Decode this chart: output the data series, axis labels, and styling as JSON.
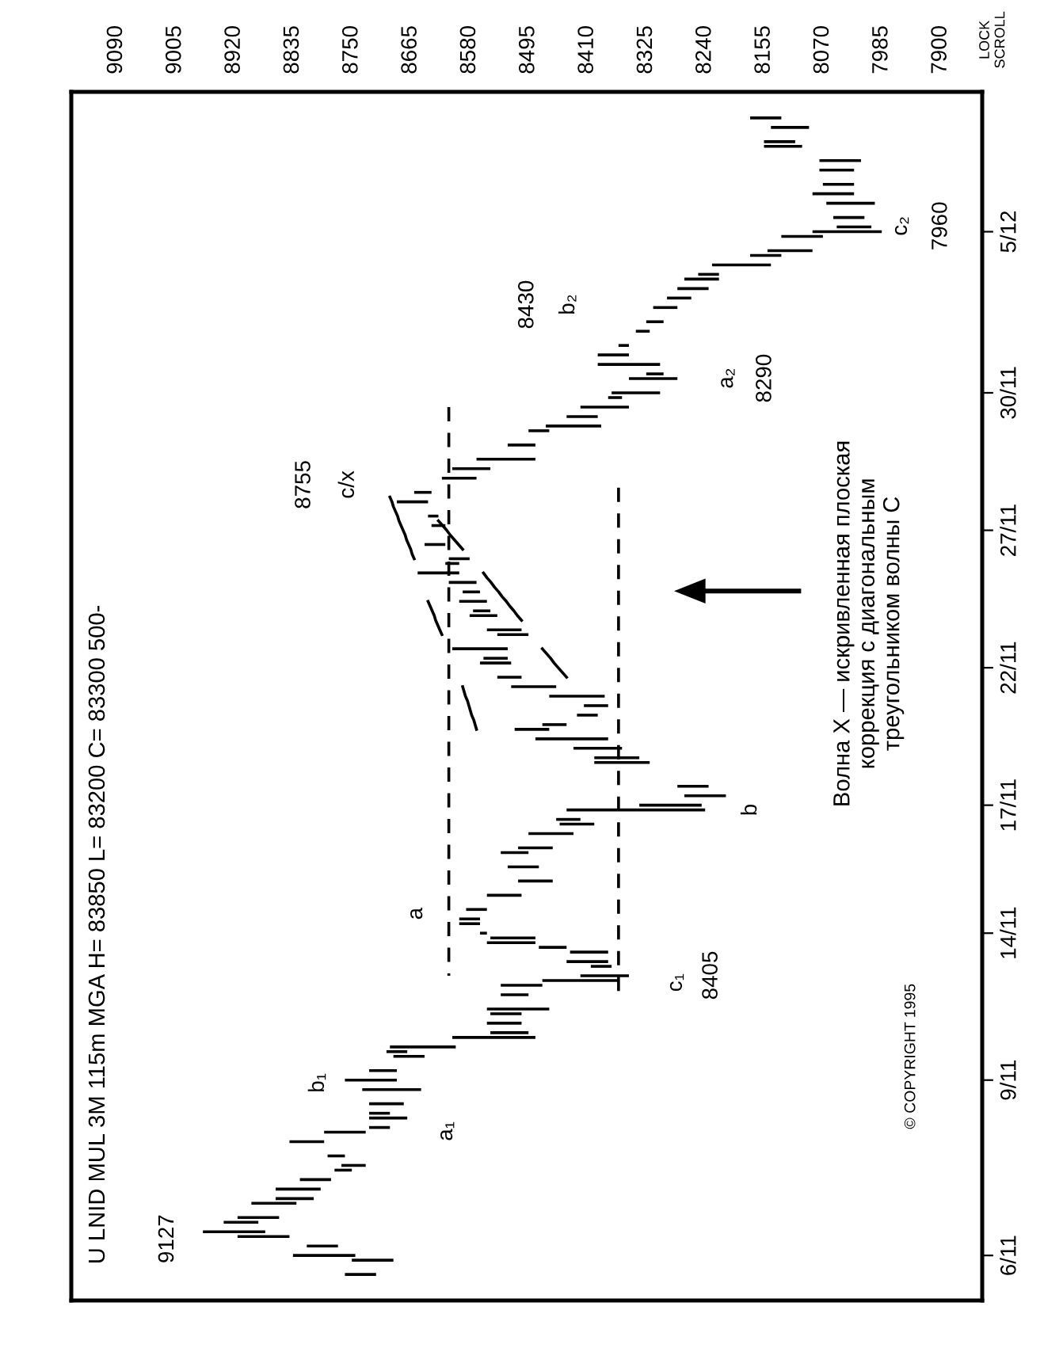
{
  "chart_data": {
    "type": "bar",
    "orientation": "horizontal",
    "title": "U LNID MUL 3M 115m MGA H= 83850 L= 83200 C= 83300 500-",
    "xlim": [
      9155,
      7840
    ],
    "xticks": [
      9090,
      9005,
      8920,
      8835,
      8750,
      8665,
      8580,
      8495,
      8410,
      8325,
      8240,
      8155,
      8070,
      7985,
      7900
    ],
    "grid": false,
    "categories": [
      null,
      null,
      null,
      null,
      null,
      null,
      null,
      null,
      null,
      null,
      null,
      null,
      null,
      null,
      null,
      null,
      null,
      null,
      null,
      null,
      null,
      null,
      null,
      null,
      null,
      null,
      null,
      null,
      null,
      "5/12",
      null,
      null,
      null,
      null,
      null,
      null,
      null,
      null,
      null,
      null,
      null,
      null,
      null,
      null,
      null,
      null,
      null,
      null,
      null,
      null,
      null,
      null,
      null,
      null,
      null,
      null,
      null,
      null,
      null,
      null,
      null,
      null,
      null,
      "30/11",
      null,
      null,
      null,
      null,
      null,
      null,
      null,
      null,
      null,
      null,
      null,
      null,
      null,
      null,
      null,
      null,
      null,
      null,
      null,
      null,
      null,
      null,
      null,
      null,
      null,
      null,
      null,
      null,
      "27/11",
      null,
      null,
      null,
      null,
      null,
      null,
      null,
      null,
      null,
      null,
      null,
      null,
      null,
      null,
      null,
      null,
      null,
      null,
      null,
      null,
      null,
      null,
      null,
      null,
      null,
      null,
      null,
      null,
      "22/11",
      null,
      null,
      null,
      null,
      null,
      null,
      null,
      null,
      null,
      null,
      null,
      null,
      null,
      null,
      null,
      null,
      null,
      null,
      null,
      null,
      null,
      null,
      null,
      null,
      null,
      null,
      null,
      null,
      "17/11",
      null,
      null,
      null,
      null,
      null,
      null,
      null,
      null,
      null,
      null,
      null,
      null,
      null,
      null,
      null,
      null,
      null,
      null,
      null,
      null,
      null,
      null,
      null,
      null,
      null,
      null,
      "14/11",
      null,
      null,
      null,
      null,
      null,
      null,
      null,
      null,
      null,
      null,
      null,
      null,
      null,
      null,
      null,
      null,
      null,
      null,
      null,
      null,
      null,
      null,
      null,
      null,
      null,
      null,
      null,
      null,
      null,
      null,
      "9/11",
      null,
      null,
      null,
      null,
      null,
      null,
      null,
      null,
      null,
      null,
      null,
      null,
      null,
      null,
      null,
      null,
      null,
      null,
      null,
      null,
      null,
      null,
      null,
      null,
      null,
      null,
      null,
      null,
      null,
      null,
      null,
      null,
      null,
      null,
      null,
      null,
      "6/11",
      null,
      null,
      null,
      null,
      null,
      null,
      null,
      null,
      null
    ],
    "series": [
      {
        "color": "#000000",
        "base": [
          null,
          null,
          null,
          null,
          null,
          8130,
          null,
          8090,
          null,
          null,
          8110,
          8100,
          null,
          null,
          8015,
          null,
          8025,
          null,
          null,
          8025,
          null,
          8025,
          null,
          7995,
          null,
          null,
          8010,
          null,
          8000,
          7985,
          8070,
          null,
          null,
          8085,
          8130,
          null,
          8145,
          null,
          8220,
          8220,
          null,
          8235,
          null,
          8260,
          null,
          8280,
          null,
          null,
          8300,
          null,
          8320,
          null,
          null,
          8350,
          null,
          8350,
          null,
          8305,
          null,
          8300,
          8280,
          null,
          null,
          8305,
          8360,
          null,
          8350,
          null,
          8395,
          null,
          8390,
          8465,
          null,
          null,
          8485,
          null,
          null,
          8485,
          null,
          8550,
          null,
          8570,
          null,
          null,
          8635,
          null,
          8640,
          null,
          null,
          8625,
          null,
          8615,
          null,
          null,
          null,
          8615,
          null,
          null,
          8580,
          8595,
          null,
          8595,
          null,
          8570,
          null,
          8565,
          null,
          8555,
          null,
          8550,
          8540,
          null,
          null,
          8505,
          8495,
          null,
          null,
          8525,
          null,
          8525,
          8520,
          null,
          null,
          8505,
          null,
          8455,
          null,
          8385,
          null,
          8380,
          null,
          8395,
          null,
          8440,
          8465,
          null,
          8380,
          null,
          8360,
          null,
          8335,
          8320,
          null,
          null,
          null,
          null,
          8235,
          null,
          8210,
          null,
          8245,
          8240,
          null,
          8420,
          8400,
          null,
          8430,
          null,
          null,
          8460,
          8495,
          null,
          null,
          8480,
          null,
          null,
          8460,
          null,
          null,
          8505,
          null,
          null,
          8555,
          null,
          8565,
          8565,
          null,
          8555,
          8485,
          8485,
          8440,
          8380,
          null,
          8380,
          8375,
          null,
          8350,
          8365,
          8475,
          null,
          8495,
          null,
          null,
          8465,
          8505,
          null,
          8505,
          null,
          8495,
          8485,
          null,
          8600,
          8670,
          8645,
          null,
          null,
          8685,
          null,
          8685,
          null,
          8650,
          null,
          null,
          8675,
          null,
          8695,
          8670,
          null,
          8695,
          8730,
          null,
          8790,
          null,
          null,
          8760,
          null,
          8730,
          8750,
          null,
          8780,
          null,
          8795,
          null,
          8805,
          8830,
          null,
          null,
          8855,
          8885,
          null,
          8875,
          8840,
          null,
          8770,
          null,
          8745,
          8690,
          null,
          null,
          8715,
          null,
          null,
          null,
          null,
          null
        ],
        "values": [
          null,
          null,
          null,
          null,
          null,
          45,
          null,
          55,
          null,
          null,
          45,
          55,
          null,
          null,
          60,
          null,
          50,
          null,
          null,
          45,
          null,
          60,
          null,
          70,
          null,
          null,
          45,
          null,
          50,
          100,
          60,
          null,
          null,
          65,
          45,
          null,
          85,
          null,
          30,
          50,
          null,
          45,
          null,
          35,
          null,
          35,
          null,
          null,
          25,
          null,
          20,
          null,
          null,
          15,
          null,
          45,
          null,
          90,
          null,
          25,
          70,
          null,
          null,
          70,
          20,
          null,
          70,
          null,
          45,
          null,
          80,
          30,
          null,
          null,
          40,
          null,
          null,
          85,
          null,
          55,
          null,
          50,
          null,
          null,
          25,
          null,
          45,
          null,
          null,
          15,
          null,
          20,
          null,
          null,
          null,
          30,
          null,
          null,
          30,
          20,
          null,
          60,
          null,
          40,
          null,
          25,
          null,
          40,
          null,
          25,
          40,
          null,
          null,
          50,
          45,
          null,
          null,
          80,
          null,
          35,
          45,
          null,
          null,
          35,
          null,
          65,
          null,
          80,
          null,
          35,
          null,
          30,
          null,
          35,
          50,
          null,
          105,
          null,
          70,
          null,
          65,
          80,
          null,
          null,
          null,
          null,
          45,
          null,
          60,
          null,
          90,
          200,
          null,
          35,
          50,
          null,
          65,
          null,
          null,
          50,
          40,
          null,
          null,
          45,
          null,
          null,
          50,
          null,
          null,
          50,
          null,
          null,
          30,
          null,
          30,
          30,
          null,
          10,
          65,
          70,
          40,
          55,
          null,
          60,
          30,
          null,
          70,
          110,
          60,
          null,
          40,
          null,
          null,
          90,
          45,
          null,
          50,
          null,
          55,
          120,
          null,
          95,
          30,
          45,
          null,
          null,
          40,
          null,
          75,
          null,
          85,
          null,
          null,
          50,
          null,
          30,
          55,
          null,
          30,
          60,
          null,
          50,
          null,
          null,
          25,
          null,
          35,
          25,
          null,
          45,
          null,
          65,
          null,
          55,
          65,
          null,
          null,
          60,
          50,
          null,
          90,
          75,
          null,
          45,
          null,
          90,
          60,
          null,
          null,
          45,
          null,
          null,
          null,
          null,
          null
        ]
      },
      {
        "type": "line",
        "color": "#000000",
        "line_style": "dashed",
        "values": [
          null,
          null,
          null,
          null,
          null,
          null,
          null,
          null,
          null,
          null,
          null,
          null,
          null,
          null,
          null,
          null,
          null,
          null,
          null,
          null,
          null,
          null,
          null,
          null,
          null,
          null,
          null,
          null,
          null,
          null,
          null,
          null,
          null,
          null,
          null,
          null,
          null,
          null,
          null,
          null,
          null,
          null,
          null,
          null,
          null,
          null,
          null,
          null,
          null,
          null,
          null,
          null,
          null,
          null,
          null,
          null,
          null,
          null,
          null,
          null,
          null,
          null,
          null,
          null,
          null,
          null,
          8610,
          8610,
          8610,
          8610,
          8610,
          8610,
          8610,
          8610,
          8610,
          8610,
          8610,
          8610,
          8610,
          8610,
          8610,
          8610,
          8610,
          8610,
          8610,
          8610,
          8610,
          8610,
          8610,
          8610,
          8610,
          8610,
          8610,
          8610,
          8610,
          8610,
          8610,
          8610,
          8610,
          8610,
          8610,
          8610,
          8610,
          8610,
          8610,
          8610,
          8610,
          8610,
          8610,
          8610,
          8610,
          8610,
          8610,
          8610,
          8610,
          8610,
          8610,
          8610,
          8610,
          8610,
          8610,
          8610,
          8610,
          8610,
          8610,
          8610,
          8610,
          8610,
          8610,
          8610,
          8610,
          8610,
          8610,
          8610,
          8610,
          8610,
          8610,
          8610,
          8610,
          8610,
          8610,
          8610,
          8610,
          8610,
          8610,
          8610,
          8610,
          8610,
          8610,
          8610,
          8610,
          8610,
          8610,
          8610,
          8610,
          8610,
          8610,
          8610,
          8610,
          8610,
          8610,
          8610,
          8610,
          8610,
          8610,
          8610,
          8610,
          8610,
          8610,
          8610,
          8610,
          8610,
          8610,
          8610,
          8610,
          8610,
          8610,
          8610,
          8610,
          8610,
          8610,
          8610,
          8610,
          8610,
          8610,
          8610,
          8610,
          null,
          null,
          null,
          null,
          null,
          null,
          null,
          null,
          null,
          null,
          null,
          null,
          null,
          null,
          null,
          null,
          null,
          null,
          null,
          null,
          null,
          null,
          null,
          null,
          null,
          null,
          null,
          null,
          null,
          null,
          null,
          null,
          null,
          null,
          null,
          null,
          null,
          null,
          null,
          null,
          null,
          null,
          null,
          null,
          null,
          null,
          null,
          null,
          null,
          null,
          null,
          null,
          null,
          null,
          null,
          null,
          null,
          null,
          null,
          null,
          null,
          null,
          null,
          null,
          null,
          null,
          null,
          null
        ]
      },
      {
        "type": "line",
        "color": "#000000",
        "line_style": "dashed",
        "values": [
          null,
          null,
          null,
          null,
          null,
          null,
          null,
          null,
          null,
          null,
          null,
          null,
          null,
          null,
          null,
          null,
          null,
          null,
          null,
          null,
          null,
          null,
          null,
          null,
          null,
          null,
          null,
          null,
          null,
          null,
          null,
          null,
          null,
          null,
          null,
          null,
          null,
          null,
          null,
          null,
          null,
          null,
          null,
          null,
          null,
          null,
          null,
          null,
          null,
          null,
          null,
          null,
          null,
          null,
          null,
          null,
          null,
          null,
          null,
          null,
          null,
          null,
          null,
          null,
          null,
          null,
          null,
          null,
          null,
          null,
          null,
          null,
          null,
          null,
          null,
          null,
          null,
          null,
          null,
          null,
          null,
          null,
          null,
          8365,
          8365,
          8365,
          8365,
          8365,
          8365,
          8365,
          8365,
          8365,
          8365,
          8365,
          8365,
          8365,
          8365,
          8365,
          8365,
          8365,
          8365,
          8365,
          8365,
          8365,
          8365,
          8365,
          8365,
          8365,
          8365,
          8365,
          8365,
          8365,
          8365,
          8365,
          8365,
          8365,
          8365,
          8365,
          8365,
          8365,
          8365,
          8365,
          8365,
          8365,
          8365,
          8365,
          8365,
          8365,
          8365,
          8365,
          8365,
          8365,
          8365,
          8365,
          8365,
          8365,
          8365,
          8365,
          8365,
          8365,
          8365,
          8365,
          8365,
          8365,
          8365,
          8365,
          8365,
          8365,
          8365,
          8365,
          8365,
          8365,
          8365,
          8365,
          8365,
          8365,
          8365,
          8365,
          8365,
          8365,
          8365,
          8365,
          8365,
          8365,
          8365,
          8365,
          8365,
          8365,
          8365,
          8365,
          8365,
          8365,
          8365,
          8365,
          8365,
          8365,
          8365,
          8365,
          8365,
          8365,
          8365,
          8365,
          8365,
          8365,
          8365,
          8365,
          8365,
          8365,
          8365,
          8365,
          8365,
          null,
          null,
          null,
          null,
          null,
          null,
          null,
          null,
          null,
          null,
          null,
          null,
          null,
          null,
          null,
          null,
          null,
          null,
          null,
          null,
          null,
          null,
          null,
          null,
          null,
          null,
          null,
          null,
          null,
          null,
          null,
          null,
          null,
          null,
          null,
          null,
          null,
          null,
          null,
          null,
          null,
          null,
          null,
          null,
          null,
          null,
          null,
          null,
          null,
          null,
          null,
          null,
          null,
          null,
          null,
          null,
          null,
          null,
          null,
          null,
          null,
          null,
          null,
          null
        ]
      },
      {
        "type": "line",
        "color": "#000000",
        "line_style": "solid",
        "values": [
          null,
          null,
          null,
          null,
          null,
          null,
          null,
          null,
          null,
          null,
          null,
          null,
          null,
          null,
          null,
          null,
          null,
          null,
          null,
          null,
          null,
          null,
          null,
          null,
          null,
          null,
          null,
          null,
          null,
          null,
          null,
          null,
          null,
          null,
          null,
          null,
          null,
          null,
          null,
          null,
          null,
          null,
          null,
          null,
          null,
          null,
          null,
          null,
          null,
          null,
          null,
          null,
          null,
          null,
          null,
          null,
          null,
          null,
          null,
          null,
          null,
          null,
          null,
          null,
          null,
          null,
          null,
          null,
          null,
          null,
          null,
          null,
          null,
          null,
          null,
          null,
          null,
          null,
          null,
          null,
          null,
          null,
          null,
          null,
          null,
          8695,
          8692,
          8690,
          8687,
          8684,
          8682,
          8679,
          8676,
          8673,
          8671,
          8668,
          8665,
          8663,
          8660,
          null,
          null,
          8560,
          8555,
          8549,
          8544,
          8538,
          8533,
          8527,
          8522,
          8516,
          8511,
          8505,
          null,
          null,
          null,
          null,
          null,
          8475,
          8469,
          8463,
          8458,
          8452,
          8446,
          8440,
          null,
          null,
          null,
          null,
          null,
          null,
          null,
          null,
          null,
          null,
          null,
          null,
          null,
          null,
          null,
          null,
          null,
          null,
          null,
          null,
          null,
          null,
          null,
          null,
          null,
          null,
          null,
          null,
          null,
          null,
          null,
          null,
          null,
          null,
          null,
          null,
          null,
          null,
          null,
          null,
          null,
          null,
          null,
          null,
          null,
          null,
          null,
          null,
          null,
          null,
          null,
          null,
          null,
          null,
          null,
          null,
          null,
          null,
          null,
          null,
          null,
          null,
          null,
          null,
          null,
          null,
          null,
          null,
          null,
          null,
          null,
          null,
          null,
          null,
          null,
          null,
          null,
          null,
          null,
          null,
          null,
          null,
          null,
          null,
          null,
          null,
          null,
          null,
          null,
          null,
          null,
          null,
          null,
          null,
          null,
          null,
          null,
          null,
          null,
          null,
          null,
          null,
          null,
          null,
          null,
          null,
          null,
          null,
          null,
          null,
          null,
          null,
          null,
          null,
          null,
          null,
          null,
          null,
          null,
          null,
          null,
          null,
          null,
          null,
          null,
          null,
          null,
          null,
          null,
          null,
          null
        ]
      },
      {
        "type": "line",
        "color": "#000000",
        "line_style": "solid",
        "values": [
          null,
          null,
          null,
          null,
          null,
          null,
          null,
          null,
          null,
          null,
          null,
          null,
          null,
          null,
          null,
          null,
          null,
          null,
          null,
          null,
          null,
          null,
          null,
          null,
          null,
          null,
          null,
          null,
          null,
          null,
          null,
          null,
          null,
          null,
          null,
          null,
          null,
          null,
          null,
          null,
          null,
          null,
          null,
          null,
          null,
          null,
          null,
          null,
          null,
          null,
          null,
          null,
          null,
          null,
          null,
          null,
          null,
          null,
          null,
          null,
          null,
          null,
          null,
          null,
          null,
          null,
          null,
          null,
          null,
          null,
          null,
          null,
          null,
          null,
          null,
          null,
          null,
          null,
          null,
          null,
          null,
          null,
          null,
          null,
          null,
          null,
          null,
          null,
          null,
          null,
          8625,
          8619,
          8613,
          8608,
          8602,
          8596,
          8590,
          null,
          null,
          null,
          null,
          null,
          null,
          null,
          null,
          null,
          null,
          8640,
          8637,
          8634,
          8631,
          8629,
          8626,
          8623,
          8620,
          null,
          null,
          null,
          null,
          null,
          null,
          null,
          null,
          null,
          null,
          8590,
          8588,
          8586,
          8583,
          8581,
          8579,
          8577,
          8574,
          8572,
          8570,
          null,
          null,
          null,
          null,
          null,
          null,
          null,
          null,
          null,
          null,
          null,
          null,
          null,
          null,
          null,
          null,
          null,
          null,
          null,
          null,
          null,
          null,
          null,
          null,
          null,
          null,
          null,
          null,
          null,
          null,
          null,
          null,
          null,
          null,
          null,
          null,
          null,
          null,
          null,
          null,
          null,
          null,
          null,
          null,
          null,
          null,
          null,
          null,
          null,
          null,
          null,
          null,
          null,
          null,
          null,
          null,
          null,
          null,
          null,
          null,
          null,
          null,
          null,
          null,
          null,
          null,
          null,
          null,
          null,
          null,
          null,
          null,
          null,
          null,
          null,
          null,
          null,
          null,
          null,
          null,
          null,
          null,
          null,
          null,
          null,
          null,
          null,
          null,
          null,
          null,
          null,
          null,
          null,
          null,
          null,
          null,
          null,
          null,
          null,
          null,
          null,
          null,
          null,
          null,
          null,
          null,
          null,
          null,
          null,
          null,
          null,
          null,
          null,
          null,
          null,
          null,
          null,
          null,
          null,
          null
        ]
      }
    ],
    "annotations": [
      "9127",
      "a₁",
      "b₁",
      "c₁",
      "8405",
      "a",
      "b",
      "8755",
      "c/x",
      "8430",
      "b₂",
      "a₂",
      "8290",
      "c₂",
      "7960",
      "Волна X — искривленная плоская\nкоррекция с диагональным\nтреугольником волны C",
      "LOCK\nSCROLL",
      "© COPYRIGHT 1995"
    ]
  }
}
